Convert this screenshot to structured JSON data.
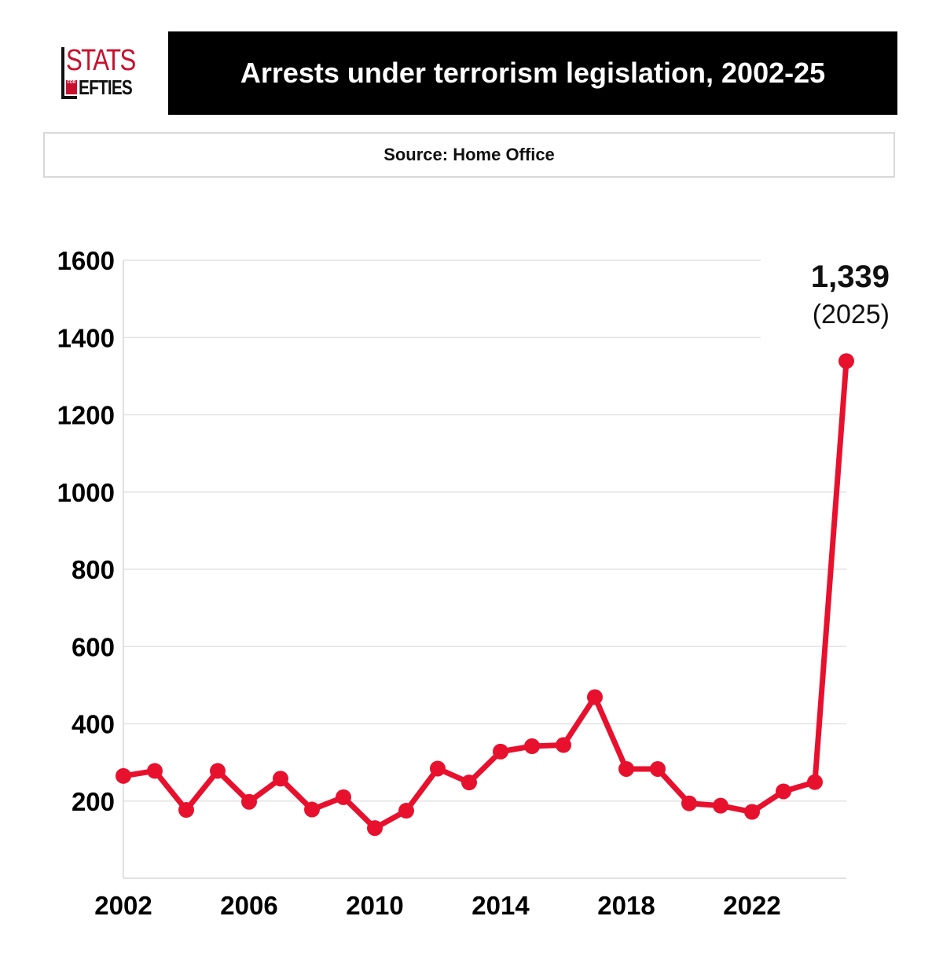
{
  "logo": {
    "stats": "STATS",
    "for": "FOR",
    "lefties": "EFTIES"
  },
  "title": "Arrests under terrorism legislation, 2002-25",
  "source": "Source: Home Office",
  "colors": {
    "line": "#e8112d",
    "grid": "#e3e3e3",
    "title_bg": "#000000"
  },
  "chart_data": {
    "type": "line",
    "title": "Arrests under terrorism legislation, 2002-25",
    "x": [
      2002,
      2003,
      2004,
      2005,
      2006,
      2007,
      2008,
      2009,
      2010,
      2011,
      2012,
      2013,
      2014,
      2015,
      2016,
      2017,
      2018,
      2019,
      2020,
      2021,
      2022,
      2023,
      2024,
      2025
    ],
    "series": [
      {
        "values": [
          265,
          278,
          177,
          278,
          198,
          258,
          178,
          210,
          130,
          175,
          284,
          248,
          328,
          342,
          345,
          469,
          283,
          283,
          194,
          188,
          172,
          225,
          249,
          1339
        ]
      }
    ],
    "xticks": [
      "2002",
      "2006",
      "2010",
      "2014",
      "2018",
      "2022"
    ],
    "yticks": [
      "200",
      "400",
      "600",
      "800",
      "1000",
      "1200",
      "1400",
      "1600"
    ],
    "xlim": [
      2002,
      2025
    ],
    "ylim": [
      0,
      1600
    ],
    "grid": "horizontal",
    "annotation": {
      "value": "1,339",
      "label": "(2025)"
    }
  }
}
